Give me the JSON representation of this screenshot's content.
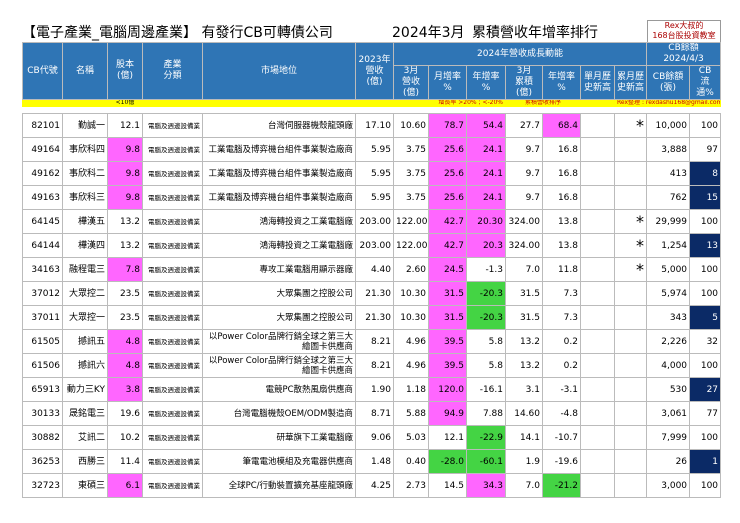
{
  "header": {
    "title_left": "【電子產業_電腦周邊產業】 有發行CB可轉債公司",
    "title_month": "2024年3月",
    "title_right": "累積營收年增率排行",
    "badge": [
      "Rex大叔的",
      "168台股投資教室"
    ]
  },
  "table": {
    "head_main": [
      "CB代號",
      "名稱",
      "股本\n(億)",
      "產業\n分類",
      "市場地位",
      "2023年\n營收(億)"
    ],
    "group": "2024年營收成長動能",
    "cb_group": "CB餘額\n2024/4/3",
    "head_sub": [
      "3月\n營收(億)",
      "月增率\n%",
      "年增率\n%",
      "3月\n累積(億)",
      "年增率\n%",
      "單月歷\n史新高",
      "累月歷\n史新高",
      "CB餘額\n(張)",
      "CB\n流通%"
    ],
    "notes": {
      "capital": "<10億",
      "growth": "增長率 >20% ; <-20%",
      "sort": "累積營收排序",
      "author": "Rex整理 : rexdashu168@gmail.com"
    },
    "rows": [
      [
        "82101",
        "勤誠一",
        "12.1",
        "電腦及週邊設備業",
        "台灣伺服器機殼龍頭廠",
        "17.10",
        "10.60",
        "78.7",
        "54.4",
        "27.7",
        "68.4",
        null,
        "*",
        "10,000",
        "100"
      ],
      [
        "49164",
        "事欣科四",
        "9.8",
        "電腦及週邊設備業",
        "工業電腦及博弈機台組件事業製造廠商",
        "5.95",
        "3.75",
        "25.6",
        "24.1",
        "9.7",
        "16.8",
        null,
        null,
        "3,888",
        "97"
      ],
      [
        "49162",
        "事欣科二",
        "9.8",
        "電腦及週邊設備業",
        "工業電腦及博弈機台組件事業製造廠商",
        "5.95",
        "3.75",
        "25.6",
        "24.1",
        "9.7",
        "16.8",
        null,
        null,
        "413",
        "8"
      ],
      [
        "49163",
        "事欣科三",
        "9.8",
        "電腦及週邊設備業",
        "工業電腦及博弈機台組件事業製造廠商",
        "5.95",
        "3.75",
        "25.6",
        "24.1",
        "9.7",
        "16.8",
        null,
        null,
        "762",
        "15"
      ],
      [
        "64145",
        "樺漢五",
        "13.2",
        "電腦及週邊設備業",
        "鴻海轉投資之工業電腦廠",
        "203.00",
        "122.00",
        "42.7",
        "20.30",
        "324.00",
        "13.8",
        null,
        "*",
        "29,999",
        "100"
      ],
      [
        "64144",
        "樺漢四",
        "13.2",
        "電腦及週邊設備業",
        "鴻海轉投資之工業電腦廠",
        "203.00",
        "122.00",
        "42.7",
        "20.3",
        "324.00",
        "13.8",
        null,
        "*",
        "1,254",
        "13"
      ],
      [
        "34163",
        "融程電三",
        "7.8",
        "電腦及週邊設備業",
        "專攻工業電腦用顯示器廠",
        "4.40",
        "2.60",
        "24.5",
        "-1.3",
        "7.0",
        "11.8",
        null,
        "*",
        "5,000",
        "100"
      ],
      [
        "37012",
        "大眾控二",
        "23.5",
        "電腦及週邊設備業",
        "大眾集團之控股公司",
        "21.30",
        "10.30",
        "31.5",
        "-20.3",
        "31.5",
        "7.3",
        null,
        null,
        "5,974",
        "100"
      ],
      [
        "37011",
        "大眾控一",
        "23.5",
        "電腦及週邊設備業",
        "大眾集團之控股公司",
        "21.30",
        "10.30",
        "31.5",
        "-20.3",
        "31.5",
        "7.3",
        null,
        null,
        "343",
        "5"
      ],
      [
        "61505",
        "撼訊五",
        "4.8",
        "電腦及週邊設備業",
        "以Power Color品牌行銷全球之第三大繪圖卡供應商",
        "8.21",
        "4.96",
        "39.5",
        "5.8",
        "13.2",
        "0.2",
        null,
        null,
        "2,226",
        "32"
      ],
      [
        "61506",
        "撼訊六",
        "4.8",
        "電腦及週邊設備業",
        "以Power Color品牌行銷全球之第三大繪圖卡供應商",
        "8.21",
        "4.96",
        "39.5",
        "5.8",
        "13.2",
        "0.2",
        null,
        null,
        "4,000",
        "100"
      ],
      [
        "65913",
        "動力三KY",
        "3.8",
        "電腦及週邊設備業",
        "電競PC散熱風扇供應商",
        "1.90",
        "1.18",
        "120.0",
        "-16.1",
        "3.1",
        "-3.1",
        null,
        null,
        "530",
        "27"
      ],
      [
        "30133",
        "晟銘電三",
        "19.6",
        "電腦及週邊設備業",
        "台灣電腦機殼OEM/ODM製造商",
        "8.71",
        "5.88",
        "94.9",
        "7.88",
        "14.60",
        "-4.8",
        null,
        null,
        "3,061",
        "77"
      ],
      [
        "30882",
        "艾訊二",
        "10.2",
        "電腦及週邊設備業",
        "研華旗下工業電腦廠",
        "9.06",
        "5.03",
        "12.1",
        "-22.9",
        "14.1",
        "-10.7",
        null,
        null,
        "7,999",
        "100"
      ],
      [
        "36253",
        "西勝三",
        "11.4",
        "電腦及週邊設備業",
        "筆電電池模組及充電器供應商",
        "1.48",
        "0.40",
        "-28.0",
        "-60.1",
        "1.9",
        "-19.6",
        null,
        null,
        "26",
        "1"
      ],
      [
        "32723",
        "東碩三",
        "6.1",
        "電腦及週邊設備業",
        "全球PC/行動裝置擴充基座龍頭廠",
        "4.25",
        "2.73",
        "14.5",
        "34.3",
        "7.0",
        "-21.2",
        null,
        null,
        "3,000",
        "100"
      ]
    ]
  }
}
